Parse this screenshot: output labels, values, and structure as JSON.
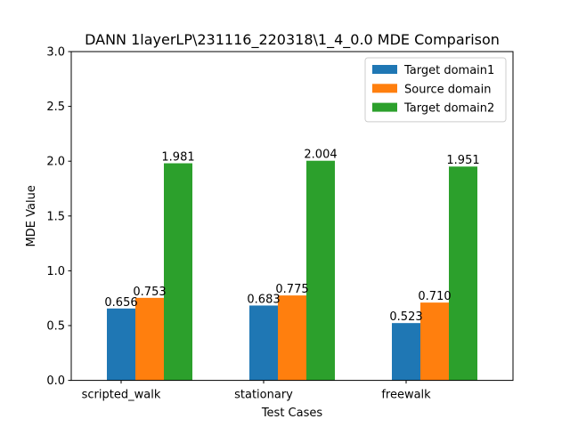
{
  "chart_data": {
    "type": "bar",
    "title": "DANN 1layerLP\\231116_220318\\1_4_0.0 MDE Comparison",
    "xlabel": "Test Cases",
    "ylabel": "MDE Value",
    "categories": [
      "scripted_walk",
      "stationary",
      "freewalk"
    ],
    "series": [
      {
        "name": "Target domain1",
        "color": "#1f77b4",
        "values": [
          0.656,
          0.683,
          0.523
        ],
        "labels": [
          "0.656",
          "0.683",
          "0.523"
        ]
      },
      {
        "name": "Source domain",
        "color": "#ff7f0e",
        "values": [
          0.753,
          0.775,
          0.71
        ],
        "labels": [
          "0.753",
          "0.775",
          "0.710"
        ]
      },
      {
        "name": "Target domain2",
        "color": "#2ca02c",
        "values": [
          1.981,
          2.004,
          1.951
        ],
        "labels": [
          "1.981",
          "2.004",
          "1.951"
        ]
      }
    ],
    "ylim": [
      0,
      3.0
    ],
    "yticks": [
      "0.0",
      "0.5",
      "1.0",
      "1.5",
      "2.0",
      "2.5",
      "3.0"
    ],
    "legend_position": "top-right",
    "grid": false
  }
}
